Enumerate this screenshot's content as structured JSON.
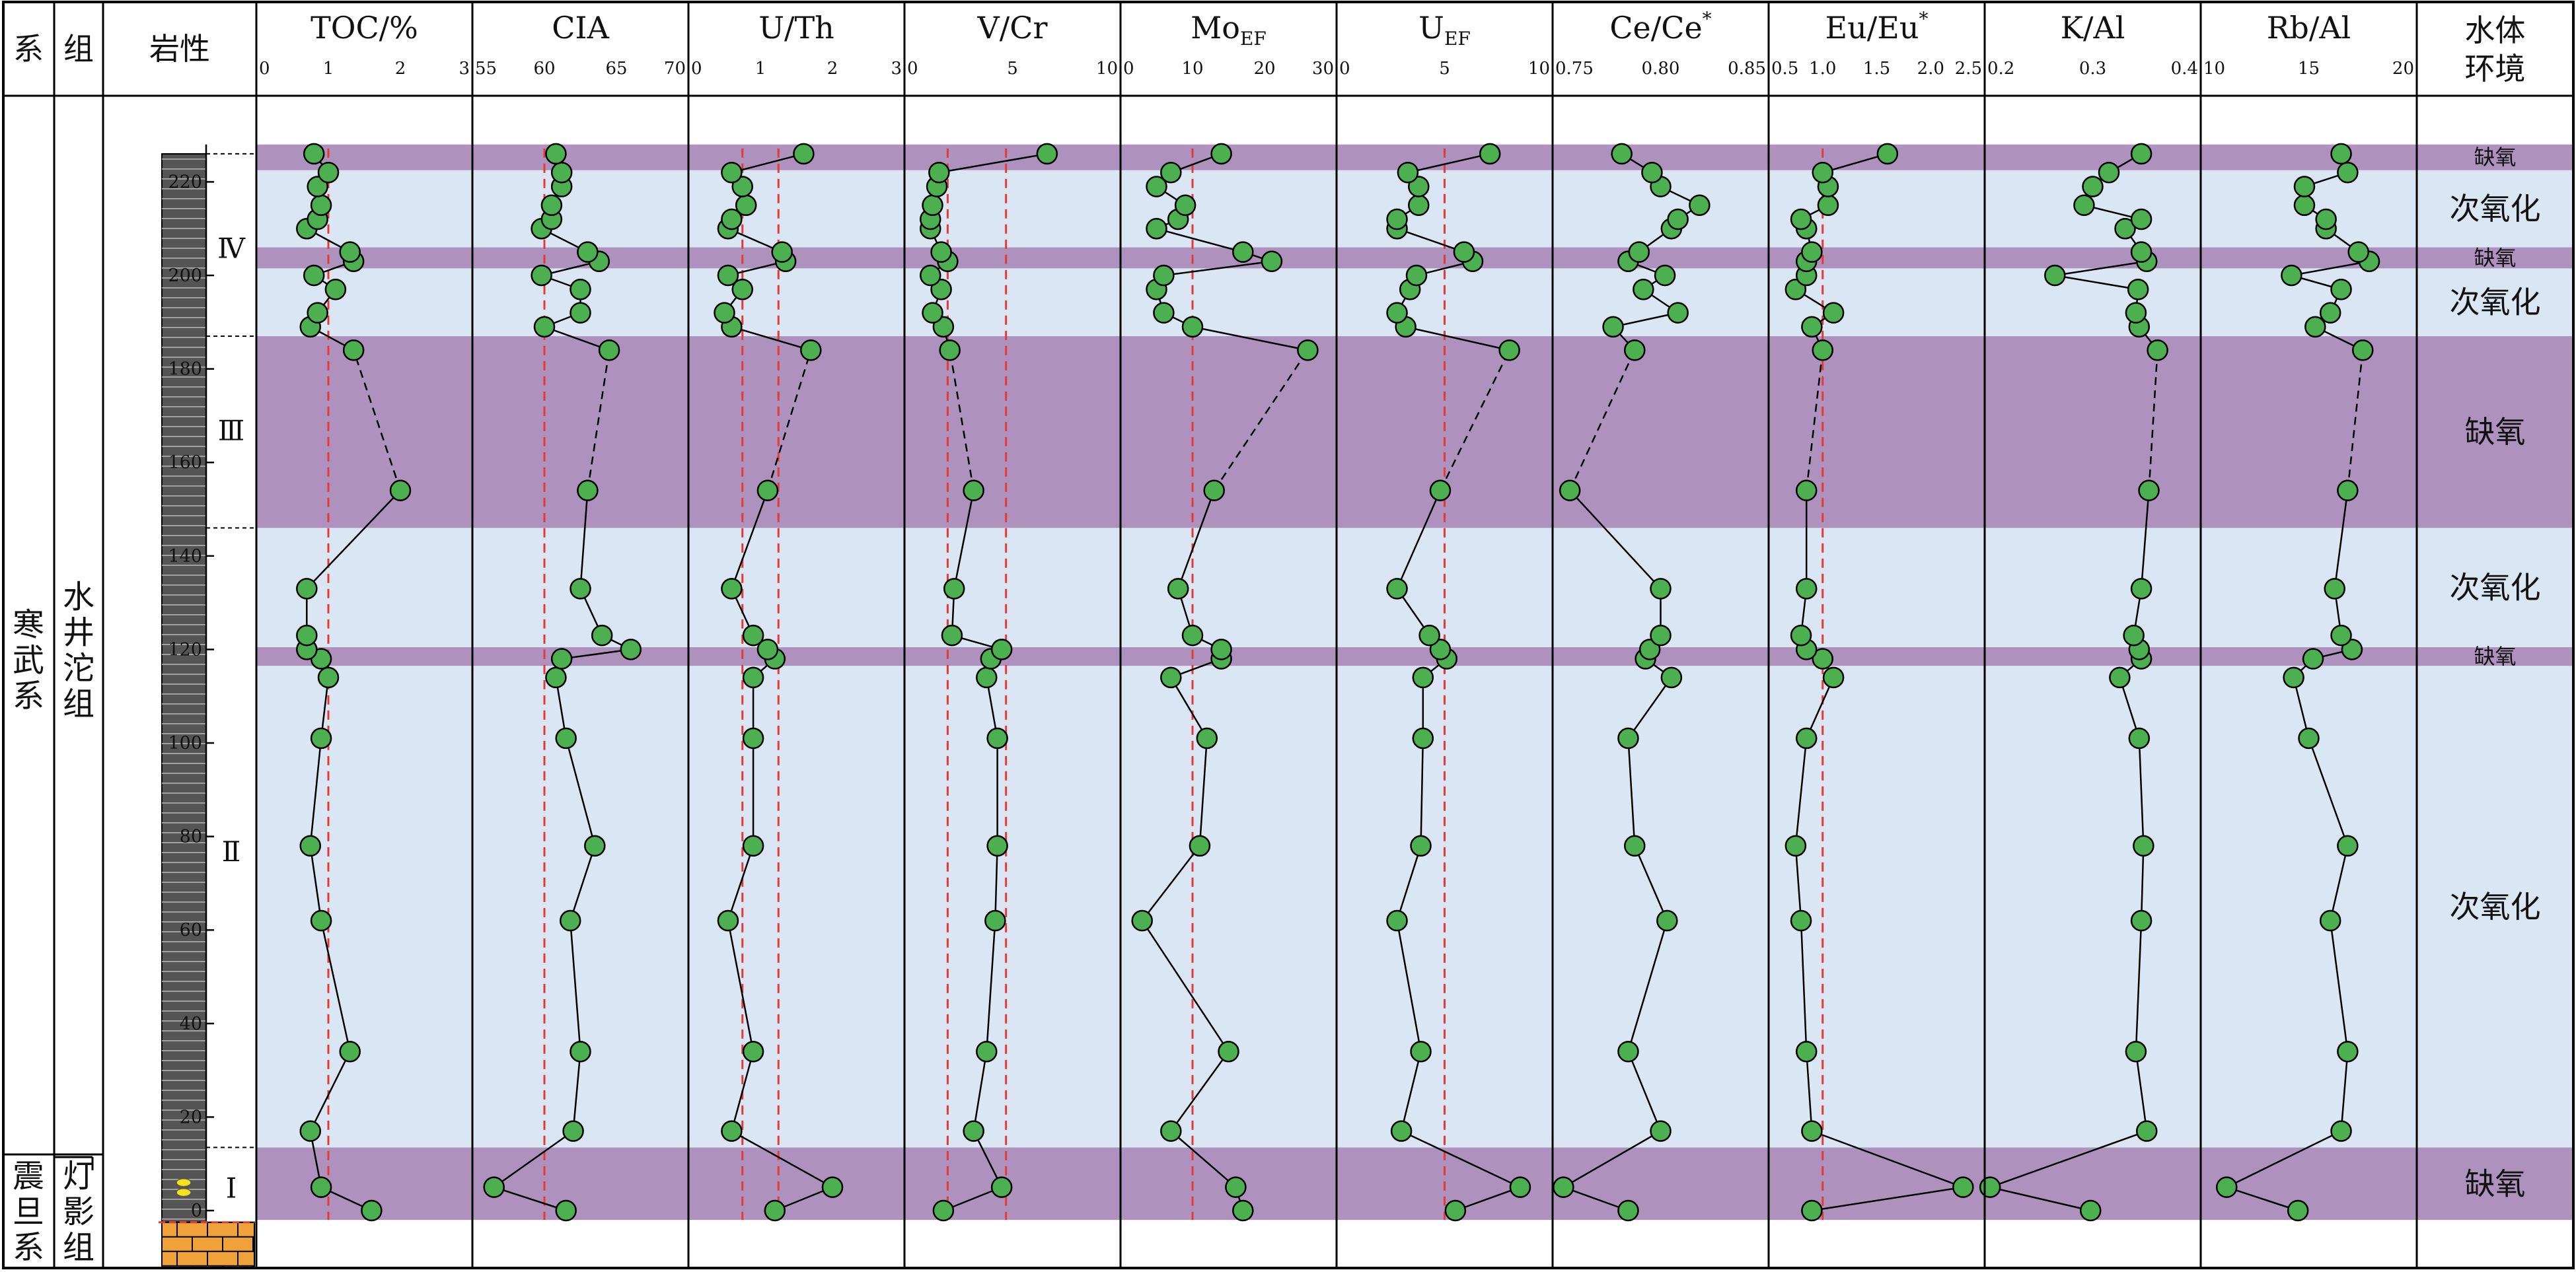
{
  "chart_data": {
    "type": "scatter",
    "depth_axis": {
      "min": -2,
      "max": 228,
      "ticks": [
        0,
        20,
        40,
        60,
        80,
        100,
        120,
        140,
        160,
        180,
        200,
        220
      ]
    },
    "depths": [
      0,
      5,
      17,
      34,
      62,
      78,
      101,
      114,
      118,
      120,
      123,
      133,
      154,
      184,
      189,
      192,
      197,
      200,
      203,
      205,
      210,
      212,
      215,
      219,
      222,
      226
    ],
    "gap_segment": [
      154,
      184
    ],
    "headers": {
      "system": "系",
      "formation": "组",
      "lithology": "岩性",
      "environment": "水体环境"
    },
    "system_labels": {
      "upper": "寒武系",
      "lower": "震旦系"
    },
    "formation_labels": {
      "upper": "水井沱组",
      "lower": "灯影组"
    },
    "stages": [
      "Ⅰ",
      "Ⅱ",
      "Ⅲ",
      "Ⅳ"
    ],
    "environments": [
      {
        "label": "缺氧",
        "from": -2,
        "to": 13.5,
        "type": "anoxic"
      },
      {
        "label": "次氧化",
        "from": 13.5,
        "to": 116.5,
        "type": "suboxic"
      },
      {
        "label": "缺氧",
        "from": 116.5,
        "to": 120.5,
        "type": "anoxic"
      },
      {
        "label": "次氧化",
        "from": 120.5,
        "to": 146,
        "type": "suboxic"
      },
      {
        "label": "缺氧",
        "from": 146,
        "to": 187,
        "type": "anoxic"
      },
      {
        "label": "次氧化",
        "from": 187,
        "to": 201.5,
        "type": "suboxic"
      },
      {
        "label": "缺氧",
        "from": 201.5,
        "to": 206,
        "type": "anoxic"
      },
      {
        "label": "次氧化",
        "from": 206,
        "to": 222.5,
        "type": "suboxic"
      },
      {
        "label": "缺氧",
        "from": 222.5,
        "to": 228,
        "type": "anoxic"
      }
    ],
    "panels": [
      {
        "title": "TOC/%",
        "sub": "",
        "sup": "",
        "xlim": [
          0,
          3
        ],
        "ticks": [
          "0",
          "1",
          "2",
          "3"
        ],
        "tickvals": [
          0,
          1,
          2,
          3
        ],
        "refs": [
          1
        ],
        "values": [
          1.6,
          0.9,
          0.75,
          1.3,
          0.9,
          0.75,
          0.9,
          1.0,
          0.9,
          0.7,
          0.7,
          0.7,
          2.0,
          1.35,
          0.75,
          0.85,
          1.1,
          0.8,
          1.35,
          1.3,
          0.7,
          0.85,
          0.9,
          0.85,
          1.0,
          0.8
        ]
      },
      {
        "title": "CIA",
        "sub": "",
        "sup": "",
        "xlim": [
          55,
          70
        ],
        "ticks": [
          "55",
          "60",
          "65",
          "70"
        ],
        "tickvals": [
          55,
          60,
          65,
          70
        ],
        "refs": [
          60
        ],
        "values": [
          61.5,
          56.5,
          62,
          62.5,
          61.8,
          63.5,
          61.5,
          60.8,
          61.2,
          66.0,
          64.0,
          62.5,
          63.0,
          64.5,
          60.0,
          62.5,
          62.5,
          59.8,
          63.8,
          63.0,
          59.8,
          60.5,
          60.5,
          61.2,
          61.2,
          60.8
        ]
      },
      {
        "title": "U/Th",
        "sub": "",
        "sup": "",
        "xlim": [
          0,
          3
        ],
        "ticks": [
          "0",
          "1",
          "2",
          "3"
        ],
        "tickvals": [
          0,
          1,
          2,
          3
        ],
        "refs": [
          0.75,
          1.25
        ],
        "values": [
          1.2,
          2.0,
          0.6,
          0.9,
          0.55,
          0.9,
          0.9,
          0.9,
          1.2,
          1.1,
          0.9,
          0.6,
          1.1,
          1.7,
          0.6,
          0.5,
          0.75,
          0.55,
          1.35,
          1.3,
          0.55,
          0.6,
          0.8,
          0.75,
          0.6,
          1.6
        ]
      },
      {
        "title": "V/Cr",
        "sub": "",
        "sup": "",
        "xlim": [
          0,
          10
        ],
        "ticks": [
          "0",
          "5",
          "10"
        ],
        "tickvals": [
          0,
          5,
          10
        ],
        "refs": [
          2,
          4.7
        ],
        "values": [
          1.8,
          4.5,
          3.2,
          3.8,
          4.2,
          4.3,
          4.3,
          3.8,
          4.0,
          4.5,
          2.2,
          2.3,
          3.2,
          2.1,
          1.8,
          1.3,
          1.7,
          1.2,
          2.0,
          1.7,
          1.2,
          1.2,
          1.3,
          1.5,
          1.6,
          6.6
        ]
      },
      {
        "title": "Mo",
        "sub": "EF",
        "sup": "",
        "xlim": [
          0,
          30
        ],
        "ticks": [
          "0",
          "10",
          "20",
          "30"
        ],
        "tickvals": [
          0,
          10,
          20,
          30
        ],
        "refs": [
          10
        ],
        "values": [
          17,
          16,
          7,
          15,
          3,
          11,
          12,
          7,
          14,
          14,
          10,
          8,
          13,
          26,
          10,
          6,
          5,
          6,
          21,
          17,
          5,
          8,
          9,
          5,
          7,
          14
        ]
      },
      {
        "title": "U",
        "sub": "EF",
        "sup": "",
        "xlim": [
          0,
          10
        ],
        "ticks": [
          "0",
          "5",
          "10"
        ],
        "tickvals": [
          0,
          5,
          10
        ],
        "refs": [
          5
        ],
        "values": [
          5.5,
          8.5,
          3.0,
          3.9,
          2.8,
          3.9,
          4.0,
          4.0,
          5.1,
          4.8,
          4.3,
          2.8,
          4.8,
          8.0,
          3.2,
          2.8,
          3.4,
          3.7,
          6.3,
          5.9,
          2.8,
          2.8,
          3.8,
          3.8,
          3.3,
          7.1
        ]
      },
      {
        "title": "Ce/Ce",
        "sub": "",
        "sup": "*",
        "xlim": [
          0.75,
          0.85
        ],
        "ticks": [
          "0.75",
          "0.80",
          "0.85"
        ],
        "tickvals": [
          0.75,
          0.8,
          0.85
        ],
        "refs": [],
        "values": [
          0.785,
          0.755,
          0.8,
          0.785,
          0.803,
          0.788,
          0.785,
          0.805,
          0.793,
          0.795,
          0.8,
          0.8,
          0.758,
          0.788,
          0.778,
          0.808,
          0.792,
          0.802,
          0.785,
          0.79,
          0.805,
          0.808,
          0.818,
          0.8,
          0.796,
          0.782
        ]
      },
      {
        "title": "Eu/Eu",
        "sub": "",
        "sup": "*",
        "xlim": [
          0.5,
          2.5
        ],
        "ticks": [
          "0.5",
          "1.0",
          "1.5",
          "2.0",
          "2.5"
        ],
        "tickvals": [
          0.5,
          1,
          1.5,
          2,
          2.5
        ],
        "refs": [
          1.0
        ],
        "values": [
          0.9,
          2.3,
          0.9,
          0.85,
          0.8,
          0.75,
          0.85,
          1.1,
          1.0,
          0.85,
          0.8,
          0.85,
          0.85,
          1.0,
          0.9,
          1.1,
          0.75,
          0.85,
          0.85,
          0.9,
          0.85,
          0.8,
          1.05,
          1.05,
          1.0,
          1.6
        ]
      },
      {
        "title": "K/Al",
        "sub": "",
        "sup": "",
        "xlim": [
          0.2,
          0.4
        ],
        "ticks": [
          "0.2",
          "0.3",
          "0.4"
        ],
        "tickvals": [
          0.2,
          0.3,
          0.4
        ],
        "refs": [],
        "values": [
          0.298,
          0.205,
          0.35,
          0.34,
          0.345,
          0.347,
          0.343,
          0.325,
          0.345,
          0.343,
          0.338,
          0.345,
          0.352,
          0.36,
          0.343,
          0.34,
          0.342,
          0.265,
          0.35,
          0.345,
          0.33,
          0.345,
          0.292,
          0.3,
          0.315,
          0.345
        ]
      },
      {
        "title": "Rb/Al",
        "sub": "",
        "sup": "",
        "xlim": [
          10,
          20
        ],
        "ticks": [
          "10",
          "15",
          "20"
        ],
        "tickvals": [
          10,
          15,
          20
        ],
        "refs": [],
        "values": [
          14.5,
          11.2,
          16.5,
          16.8,
          16.0,
          16.8,
          15.0,
          14.3,
          15.2,
          17.0,
          16.5,
          16.2,
          16.8,
          17.5,
          15.3,
          16.0,
          16.5,
          14.2,
          17.8,
          17.3,
          15.8,
          15.8,
          14.8,
          14.8,
          16.8,
          16.5
        ]
      }
    ],
    "colors": {
      "anoxic": "#ae92bd",
      "suboxic": "#dae6f4",
      "point": "#4caf50",
      "ref": "#e53935"
    }
  }
}
